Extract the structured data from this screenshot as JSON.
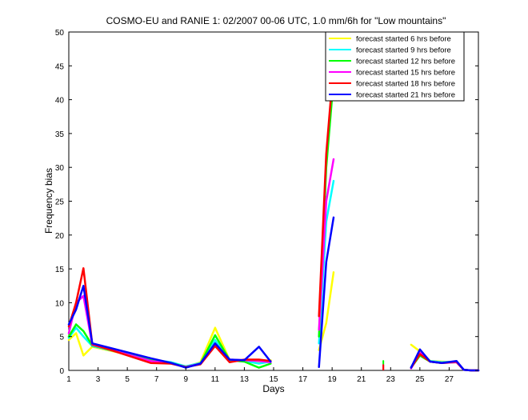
{
  "chart_data": {
    "type": "line",
    "title": "COSMO-EU and RANIE 1: 02/2007 00-06 UTC, 1.0 mm/6h for \"Low mountains\"",
    "xlabel": "Days",
    "ylabel": "Frequency bias",
    "xlim": [
      1,
      29
    ],
    "ylim": [
      0,
      50
    ],
    "xticks": [
      1,
      3,
      5,
      7,
      9,
      11,
      13,
      15,
      17,
      19,
      21,
      23,
      25,
      27
    ],
    "yticks": [
      0,
      5,
      10,
      15,
      20,
      25,
      30,
      35,
      40,
      45,
      50
    ],
    "grid": false,
    "legend_position": "top-right",
    "series": [
      {
        "name": "forecast started 6 hrs before",
        "color": "#ffff00",
        "points": [
          [
            1,
            4.5
          ],
          [
            1.5,
            5.5
          ],
          [
            2,
            2.2
          ],
          [
            2.6,
            3.5
          ],
          [
            6.6,
            1.6
          ],
          [
            8,
            1.1
          ],
          [
            9,
            0.5
          ],
          [
            10,
            1.2
          ],
          [
            11,
            6.3
          ],
          [
            12,
            1.5
          ],
          [
            13,
            1.4
          ],
          [
            14,
            1.1
          ],
          [
            14.8,
            1.5
          ],
          null,
          [
            18.1,
            3
          ],
          [
            18.6,
            7
          ],
          [
            19.1,
            14.5
          ],
          null,
          [
            24.4,
            3.8
          ],
          [
            25,
            2.8
          ],
          [
            25.7,
            1.4
          ],
          [
            26.5,
            1.3
          ],
          [
            27.5,
            1.2
          ],
          [
            28,
            0.1
          ],
          [
            28.5,
            0
          ],
          [
            30,
            0
          ]
        ]
      },
      {
        "name": "forecast started 9 hrs before",
        "color": "#00ffff",
        "points": [
          [
            1,
            4.8
          ],
          [
            1.5,
            6.3
          ],
          [
            2,
            5
          ],
          [
            2.6,
            3.6
          ],
          [
            6.6,
            1.6
          ],
          [
            8,
            1.2
          ],
          [
            9,
            0.6
          ],
          [
            10,
            1.1
          ],
          [
            11,
            4.5
          ],
          [
            12,
            1.4
          ],
          [
            13,
            1.4
          ],
          [
            14,
            1.0
          ],
          [
            14.8,
            1.3
          ],
          null,
          [
            18.1,
            4
          ],
          [
            18.6,
            22
          ],
          [
            19.1,
            28
          ],
          null,
          [
            24.4,
            0.5
          ],
          [
            25,
            2.5
          ],
          [
            25.7,
            1.4
          ],
          [
            26.5,
            1.2
          ],
          [
            27.5,
            1.3
          ],
          [
            28,
            0.1
          ],
          [
            28.5,
            0
          ],
          [
            30,
            0
          ]
        ]
      },
      {
        "name": "forecast started 12 hrs before",
        "color": "#00ff00",
        "points": [
          [
            1,
            5
          ],
          [
            1.5,
            6.8
          ],
          [
            2,
            5.8
          ],
          [
            2.6,
            3.7
          ],
          [
            6.6,
            1.5
          ],
          [
            8,
            1.1
          ],
          [
            9,
            0.5
          ],
          [
            10,
            1.0
          ],
          [
            11,
            5.2
          ],
          [
            12,
            1.5
          ],
          [
            13,
            1.3
          ],
          [
            14,
            0.4
          ],
          [
            14.8,
            1.0
          ],
          null,
          [
            18.1,
            5
          ],
          [
            18.6,
            30
          ],
          [
            19.1,
            43
          ],
          null,
          [
            22.5,
            1.4
          ],
          null,
          [
            24.4,
            0.4
          ],
          [
            25,
            2.2
          ],
          [
            25.7,
            1.3
          ],
          [
            26.5,
            1.1
          ],
          [
            27.5,
            1.2
          ],
          [
            28,
            0.1
          ],
          [
            28.5,
            0
          ],
          [
            30,
            0
          ]
        ]
      },
      {
        "name": "forecast started 15 hrs before",
        "color": "#ff00ff",
        "points": [
          [
            1,
            5.5
          ],
          [
            1.5,
            10
          ],
          [
            2,
            11
          ],
          [
            2.6,
            3.8
          ],
          [
            6.6,
            1.4
          ],
          [
            8,
            1.0
          ],
          [
            9,
            0.5
          ],
          [
            10,
            1.0
          ],
          [
            11,
            4.0
          ],
          [
            12,
            1.6
          ],
          [
            13,
            1.5
          ],
          [
            14,
            1.4
          ],
          [
            14.8,
            1.2
          ],
          null,
          [
            18.1,
            6
          ],
          [
            18.6,
            25
          ],
          [
            19.1,
            31.2
          ],
          null,
          [
            22.5,
            0.8
          ],
          null,
          [
            24.4,
            0.3
          ],
          [
            25,
            2.6
          ],
          [
            25.7,
            1.3
          ],
          [
            26.5,
            1.1
          ],
          [
            27.5,
            1.2
          ],
          [
            28,
            0.1
          ],
          [
            28.5,
            0
          ],
          [
            30,
            0
          ]
        ]
      },
      {
        "name": "forecast started 18 hrs before",
        "color": "#ff0000",
        "points": [
          [
            1,
            6.5
          ],
          [
            1.5,
            10
          ],
          [
            2,
            15.1
          ],
          [
            2.6,
            3.9
          ],
          [
            6.6,
            1.1
          ],
          [
            8,
            1.0
          ],
          [
            9,
            0.5
          ],
          [
            10,
            0.9
          ],
          [
            11,
            3.6
          ],
          [
            12,
            1.2
          ],
          [
            13,
            1.6
          ],
          [
            14,
            1.6
          ],
          [
            14.8,
            1.4
          ],
          null,
          [
            18.1,
            8
          ],
          [
            18.6,
            32
          ],
          [
            19.1,
            45.2
          ],
          null,
          [
            22.5,
            0.8
          ],
          null,
          [
            24.4,
            0.4
          ],
          [
            25,
            2.4
          ],
          [
            25.7,
            1.3
          ],
          [
            26.5,
            1.1
          ],
          [
            27.5,
            1.3
          ],
          [
            28,
            0.1
          ],
          [
            28.5,
            0
          ],
          [
            30,
            0
          ]
        ]
      },
      {
        "name": "forecast started 21 hrs before",
        "color": "#0000ff",
        "points": [
          [
            1,
            6.8
          ],
          [
            1.5,
            9
          ],
          [
            2,
            12.5
          ],
          [
            2.6,
            4.0
          ],
          [
            6.6,
            1.8
          ],
          [
            8,
            1.1
          ],
          [
            9,
            0.4
          ],
          [
            10,
            1.0
          ],
          [
            11,
            4.0
          ],
          [
            12,
            1.6
          ],
          [
            13,
            1.5
          ],
          [
            14,
            3.5
          ],
          [
            14.8,
            1.3
          ],
          null,
          [
            18.1,
            0.5
          ],
          [
            18.6,
            16
          ],
          [
            19.1,
            22.6
          ],
          null,
          [
            24.4,
            0.4
          ],
          [
            25,
            3.1
          ],
          [
            25.7,
            1.3
          ],
          [
            26.5,
            1.1
          ],
          [
            27.5,
            1.4
          ],
          [
            28,
            0.1
          ],
          [
            28.5,
            0
          ],
          [
            30,
            0
          ]
        ]
      }
    ]
  }
}
